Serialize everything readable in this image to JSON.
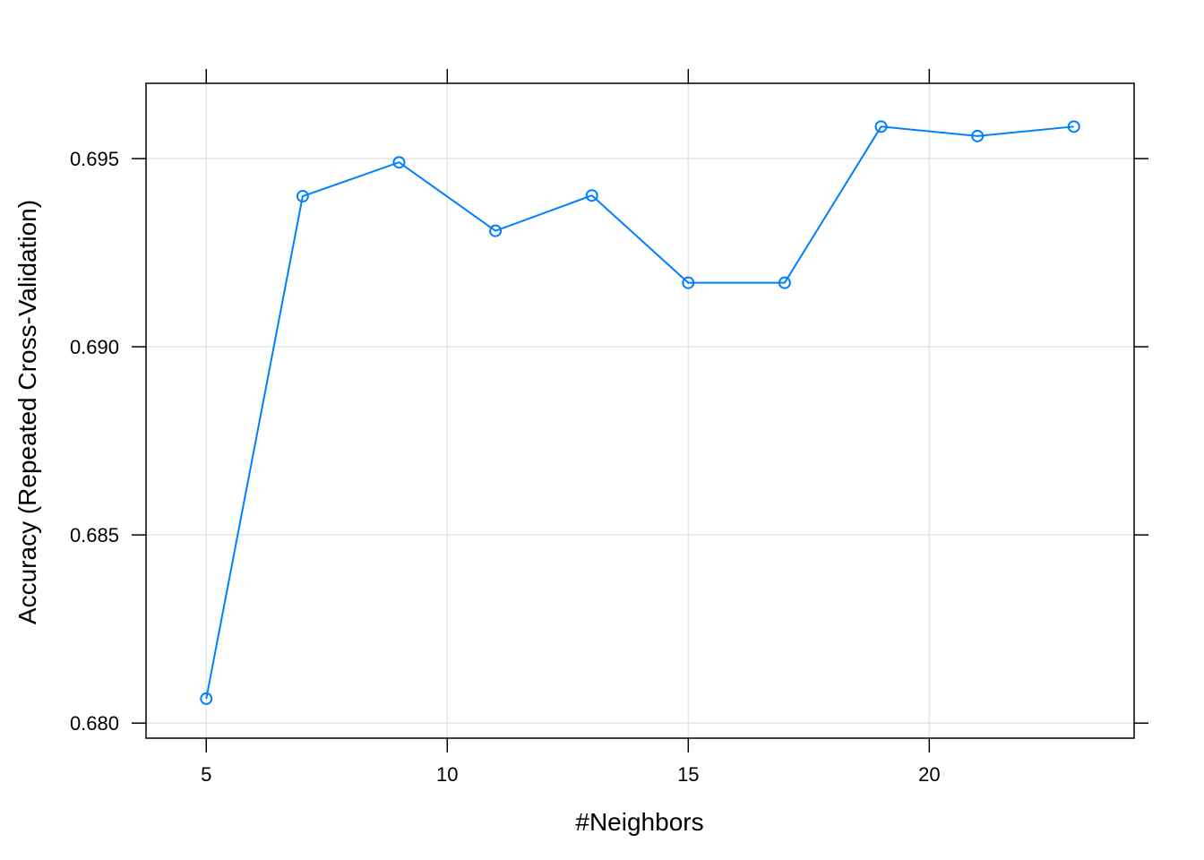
{
  "chart_data": {
    "type": "line",
    "title": "",
    "xlabel": "#Neighbors",
    "ylabel": "Accuracy (Repeated Cross-Validation)",
    "xlim": [
      3.75,
      24.25
    ],
    "ylim": [
      0.6796,
      0.697
    ],
    "grid": true,
    "x_ticks": [
      5,
      10,
      15,
      20
    ],
    "x_tick_labels": [
      "5",
      "10",
      "15",
      "20"
    ],
    "y_ticks": [
      0.68,
      0.685,
      0.69,
      0.695
    ],
    "y_tick_labels": [
      "0.680",
      "0.685",
      "0.690",
      "0.695"
    ],
    "series": [
      {
        "color": "#0080ff",
        "marker": "open-circle",
        "x": [
          5,
          7,
          9,
          11,
          13,
          15,
          17,
          19,
          21,
          23
        ],
        "y": [
          0.68065,
          0.694,
          0.6949,
          0.69308,
          0.69402,
          0.6917,
          0.6917,
          0.69585,
          0.6956,
          0.69585
        ]
      }
    ]
  }
}
